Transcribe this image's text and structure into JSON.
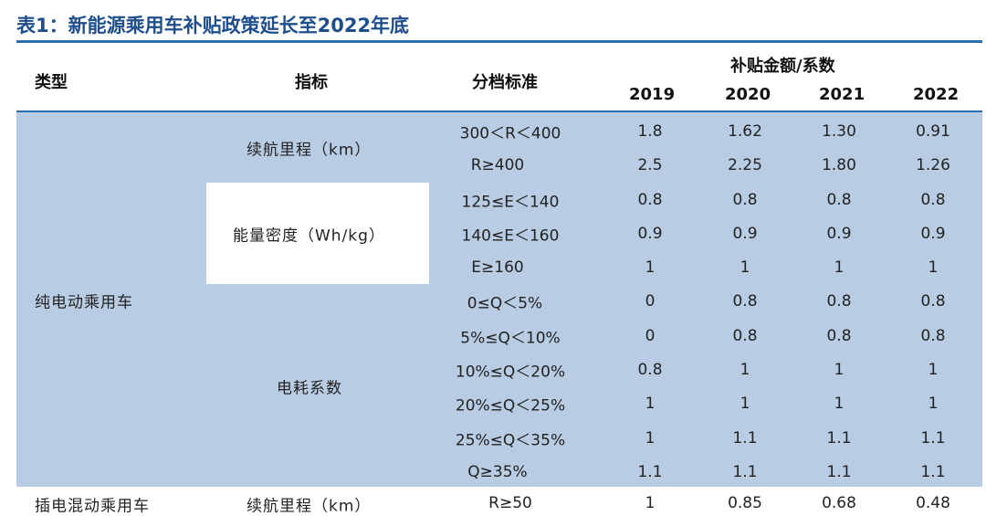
{
  "title": "表1：新能源乘用车补贴政策延长至2022年底",
  "header": {
    "type": "类型",
    "metric": "指标",
    "tier": "分档标准",
    "subsidy_group": "补贴金额/系数",
    "years": [
      "2019",
      "2020",
      "2021",
      "2022"
    ]
  },
  "groups": {
    "bev": "纯电动乘用车",
    "phev": "插电混动乘用车"
  },
  "metrics": {
    "range": "续航里程（km）",
    "energy_density": "能量密度（Wh/kg）",
    "consumption": "电耗系数",
    "phev_range": "续航里程（km）"
  },
  "rows": [
    {
      "tier": "300＜R＜400",
      "values": [
        "1.8",
        "1.62",
        "1.30",
        "0.91"
      ]
    },
    {
      "tier": "R≥400",
      "values": [
        "2.5",
        "2.25",
        "1.80",
        "1.26"
      ]
    },
    {
      "tier": "125≤E＜140",
      "values": [
        "0.8",
        "0.8",
        "0.8",
        "0.8"
      ]
    },
    {
      "tier": "140≤E＜160",
      "values": [
        "0.9",
        "0.9",
        "0.9",
        "0.9"
      ]
    },
    {
      "tier": "E≥160",
      "values": [
        "1",
        "1",
        "1",
        "1"
      ]
    },
    {
      "tier": "0≤Q＜5%",
      "values": [
        "0",
        "0.8",
        "0.8",
        "0.8"
      ]
    },
    {
      "tier": "5%≤Q＜10%",
      "values": [
        "0",
        "0.8",
        "0.8",
        "0.8"
      ]
    },
    {
      "tier": "10%≤Q＜20%",
      "values": [
        "0.8",
        "1",
        "1",
        "1"
      ]
    },
    {
      "tier": "20%≤Q＜25%",
      "values": [
        "1",
        "1",
        "1",
        "1"
      ]
    },
    {
      "tier": "25%≤Q＜35%",
      "values": [
        "1",
        "1.1",
        "1.1",
        "1.1"
      ]
    },
    {
      "tier": "Q≥35%",
      "values": [
        "1.1",
        "1.1",
        "1.1",
        "1.1"
      ]
    },
    {
      "tier": "R≥50",
      "values": [
        "1",
        "0.85",
        "0.68",
        "0.48"
      ]
    }
  ],
  "colors": {
    "accent": "#2f6db3",
    "title": "#1f4e8c",
    "band": "#b8cce4"
  }
}
